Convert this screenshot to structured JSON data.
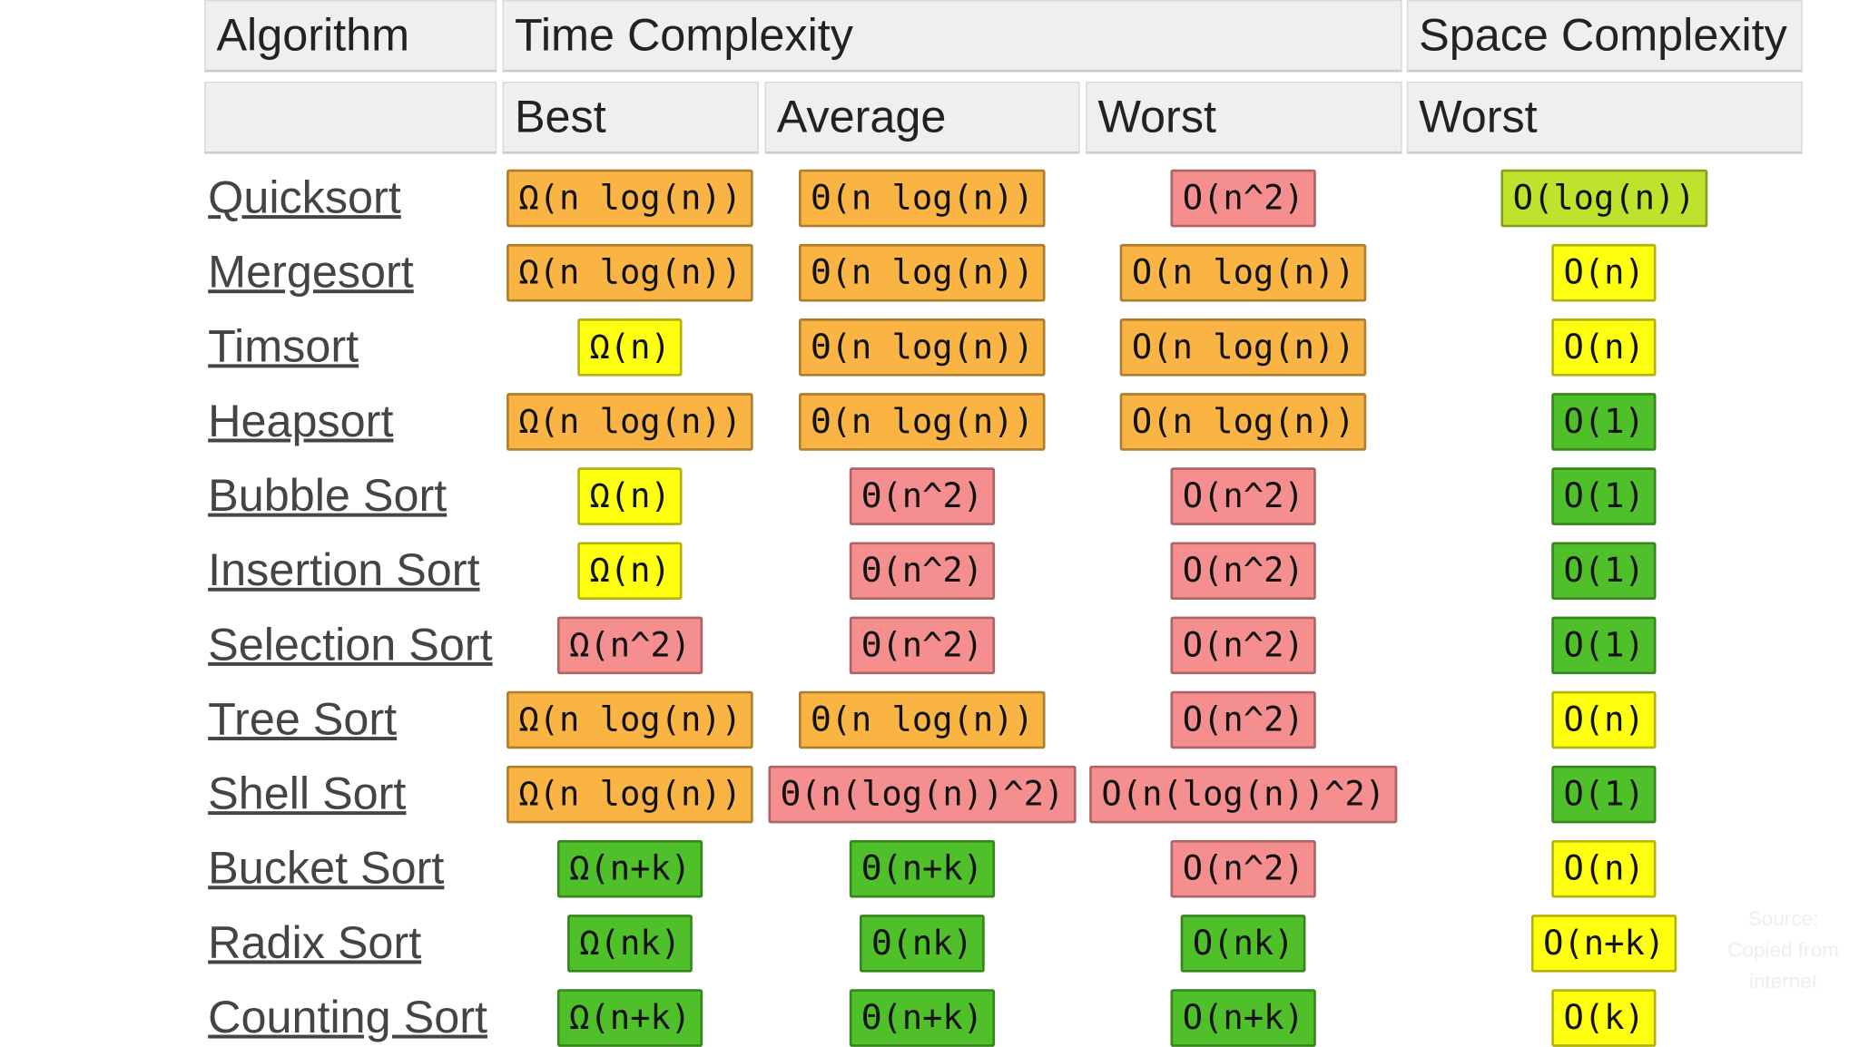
{
  "table": {
    "header": [
      "Algorithm",
      "Time Complexity",
      "Space Complexity"
    ],
    "subheader": [
      "Best",
      "Average",
      "Worst",
      "Worst"
    ],
    "rows": [
      {
        "name": "Quicksort",
        "cells": [
          {
            "text": "Ω(n log(n))",
            "color": "#f9b443"
          },
          {
            "text": "Θ(n log(n))",
            "color": "#f9b443"
          },
          {
            "text": "O(n^2)",
            "color": "#f58f8f"
          },
          {
            "text": "O(log(n))",
            "color": "#bfe22c"
          }
        ]
      },
      {
        "name": "Mergesort",
        "cells": [
          {
            "text": "Ω(n log(n))",
            "color": "#f9b443"
          },
          {
            "text": "Θ(n log(n))",
            "color": "#f9b443"
          },
          {
            "text": "O(n log(n))",
            "color": "#f9b443"
          },
          {
            "text": "O(n)",
            "color": "#ffff10"
          }
        ]
      },
      {
        "name": "Timsort",
        "cells": [
          {
            "text": "Ω(n)",
            "color": "#ffff10"
          },
          {
            "text": "Θ(n log(n))",
            "color": "#f9b443"
          },
          {
            "text": "O(n log(n))",
            "color": "#f9b443"
          },
          {
            "text": "O(n)",
            "color": "#ffff10"
          }
        ]
      },
      {
        "name": "Heapsort",
        "cells": [
          {
            "text": "Ω(n log(n))",
            "color": "#f9b443"
          },
          {
            "text": "Θ(n log(n))",
            "color": "#f9b443"
          },
          {
            "text": "O(n log(n))",
            "color": "#f9b443"
          },
          {
            "text": "O(1)",
            "color": "#4fbf2a"
          }
        ]
      },
      {
        "name": "Bubble Sort",
        "cells": [
          {
            "text": "Ω(n)",
            "color": "#ffff10"
          },
          {
            "text": "Θ(n^2)",
            "color": "#f58f8f"
          },
          {
            "text": "O(n^2)",
            "color": "#f58f8f"
          },
          {
            "text": "O(1)",
            "color": "#4fbf2a"
          }
        ]
      },
      {
        "name": "Insertion Sort",
        "cells": [
          {
            "text": "Ω(n)",
            "color": "#ffff10"
          },
          {
            "text": "Θ(n^2)",
            "color": "#f58f8f"
          },
          {
            "text": "O(n^2)",
            "color": "#f58f8f"
          },
          {
            "text": "O(1)",
            "color": "#4fbf2a"
          }
        ]
      },
      {
        "name": "Selection Sort",
        "cells": [
          {
            "text": "Ω(n^2)",
            "color": "#f58f8f"
          },
          {
            "text": "Θ(n^2)",
            "color": "#f58f8f"
          },
          {
            "text": "O(n^2)",
            "color": "#f58f8f"
          },
          {
            "text": "O(1)",
            "color": "#4fbf2a"
          }
        ]
      },
      {
        "name": "Tree Sort",
        "cells": [
          {
            "text": "Ω(n log(n))",
            "color": "#f9b443"
          },
          {
            "text": "Θ(n log(n))",
            "color": "#f9b443"
          },
          {
            "text": "O(n^2)",
            "color": "#f58f8f"
          },
          {
            "text": "O(n)",
            "color": "#ffff10"
          }
        ]
      },
      {
        "name": "Shell Sort",
        "cells": [
          {
            "text": "Ω(n log(n))",
            "color": "#f9b443"
          },
          {
            "text": "Θ(n(log(n))^2)",
            "color": "#f58f8f"
          },
          {
            "text": "O(n(log(n))^2)",
            "color": "#f58f8f"
          },
          {
            "text": "O(1)",
            "color": "#4fbf2a"
          }
        ]
      },
      {
        "name": "Bucket Sort",
        "cells": [
          {
            "text": "Ω(n+k)",
            "color": "#4fbf2a"
          },
          {
            "text": "Θ(n+k)",
            "color": "#4fbf2a"
          },
          {
            "text": "O(n^2)",
            "color": "#f58f8f"
          },
          {
            "text": "O(n)",
            "color": "#ffff10"
          }
        ]
      },
      {
        "name": "Radix Sort",
        "cells": [
          {
            "text": "Ω(nk)",
            "color": "#4fbf2a"
          },
          {
            "text": "Θ(nk)",
            "color": "#4fbf2a"
          },
          {
            "text": "O(nk)",
            "color": "#4fbf2a"
          },
          {
            "text": "O(n+k)",
            "color": "#ffff10"
          }
        ]
      },
      {
        "name": "Counting Sort",
        "cells": [
          {
            "text": "Ω(n+k)",
            "color": "#4fbf2a"
          },
          {
            "text": "Θ(n+k)",
            "color": "#4fbf2a"
          },
          {
            "text": "O(n+k)",
            "color": "#4fbf2a"
          },
          {
            "text": "O(k)",
            "color": "#ffff10"
          }
        ]
      }
    ]
  },
  "watermark": "Source: Copied from internet"
}
